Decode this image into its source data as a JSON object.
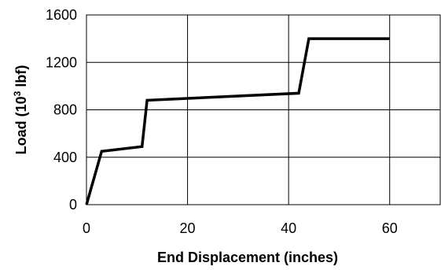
{
  "chart_data": {
    "type": "line",
    "title": "",
    "xlabel": "End Displacement (inches)",
    "ylabel": {
      "prefix": "Load (10",
      "superscript": "3",
      "suffix": " lbf)"
    },
    "xlim": [
      0,
      70
    ],
    "ylim": [
      0,
      1600
    ],
    "xticks": [
      0,
      20,
      40,
      60
    ],
    "yticks": [
      0,
      400,
      800,
      1200,
      1600
    ],
    "grid": true,
    "series": [
      {
        "name": "",
        "color": "#000000",
        "x": [
          0,
          3,
          11,
          12,
          42,
          44,
          60
        ],
        "y": [
          0,
          450,
          490,
          880,
          940,
          1400,
          1400
        ]
      }
    ]
  }
}
